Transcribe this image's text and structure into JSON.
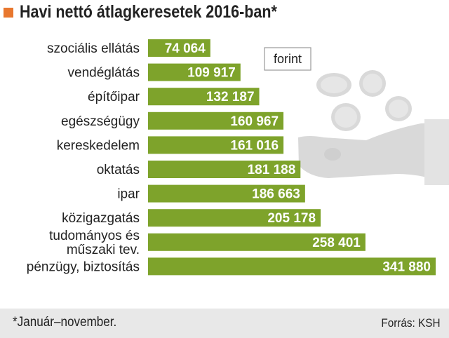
{
  "title": "Havi nettó átlagkeresetek 2016-ban*",
  "footnote": "*Január–november.",
  "source": "Forrás: KSH",
  "colors": {
    "bar": "#7ea32b",
    "accent": "#e8772e",
    "footer": "#e8e8e8",
    "illustration": "#d9d9d9"
  },
  "illustration": "hand-with-coins-icon",
  "chart_data": {
    "type": "bar",
    "orientation": "horizontal",
    "unit_label": "forint",
    "categories": [
      [
        "szociális ellátás"
      ],
      [
        "vendéglátás"
      ],
      [
        "építőipar"
      ],
      [
        "egészségügy"
      ],
      [
        "kereskedelem"
      ],
      [
        "oktatás"
      ],
      [
        "ipar"
      ],
      [
        "közigazgatás"
      ],
      [
        "tudományos és",
        "műszaki tev."
      ],
      [
        "pénzügy, biztosítás"
      ]
    ],
    "values": [
      74064,
      109917,
      132187,
      160967,
      161016,
      181188,
      186663,
      205178,
      258401,
      341880
    ],
    "value_labels": [
      "74 064",
      "109 917",
      "132 187",
      "160 967",
      "161 016",
      "181 188",
      "186 663",
      "205 178",
      "258 401",
      "341 880"
    ],
    "xlim": [
      0,
      350000
    ],
    "grid": false
  }
}
